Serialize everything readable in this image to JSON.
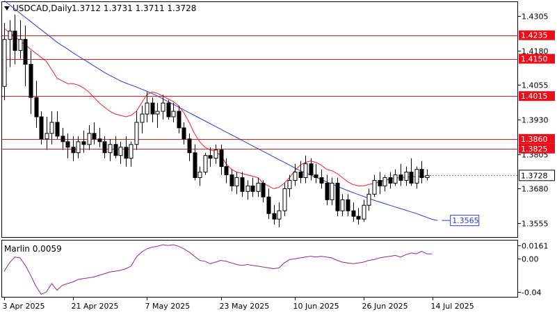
{
  "header": {
    "symbol": "USDCAD,Daily",
    "ohlc": "1.3712 1.3731 1.3711 1.3728"
  },
  "colors": {
    "candle": "#000000",
    "fast_ma": "#e8202a",
    "slow_ma": "#2a3bd9",
    "levels": "#d81c1c",
    "marlin": "#8f2a94",
    "grid_text": "#000000",
    "label_box_red": "#e8101a",
    "label_box_dark": "#000000"
  },
  "chart_data": [
    {
      "type": "candlestick",
      "name": "USDCAD,Daily",
      "ylim": [
        1.3505,
        1.4355
      ],
      "y_ticks": [
        "1.4305",
        "1.4180",
        "1.4055",
        "1.3930",
        "1.3805",
        "1.3680",
        "1.3555"
      ],
      "x_tick_labels": [
        "3 Apr 2025",
        "21 Apr 2025",
        "7 May 2025",
        "23 May 2025",
        "10 Jun 2025",
        "26 Jun 2025",
        "14 Jul 2025"
      ],
      "x_tick_index": [
        0,
        13,
        27,
        41,
        55,
        68,
        81
      ],
      "horizontal_levels": [
        {
          "value": 1.4235,
          "label": "1.4235"
        },
        {
          "value": 1.415,
          "label": "1.4150"
        },
        {
          "value": 1.4015,
          "label": "1.4015"
        },
        {
          "value": 1.386,
          "label": "1.3860"
        },
        {
          "value": 1.3825,
          "label": "1.3825"
        }
      ],
      "current_price": {
        "value": 1.3728,
        "label": "1.3728"
      },
      "slow_ma_label": {
        "value": 1.3565,
        "label": "1.3565"
      },
      "candles": [
        [
          1.405,
          1.428,
          1.4,
          1.422
        ],
        [
          1.422,
          1.429,
          1.412,
          1.425
        ],
        [
          1.425,
          1.431,
          1.413,
          1.418
        ],
        [
          1.418,
          1.429,
          1.415,
          1.422
        ],
        [
          1.422,
          1.427,
          1.405,
          1.413
        ],
        [
          1.413,
          1.418,
          1.395,
          1.401
        ],
        [
          1.401,
          1.407,
          1.39,
          1.394
        ],
        [
          1.394,
          1.396,
          1.384,
          1.386
        ],
        [
          1.386,
          1.394,
          1.382,
          1.388
        ],
        [
          1.388,
          1.396,
          1.384,
          1.392
        ],
        [
          1.392,
          1.396,
          1.386,
          1.387
        ],
        [
          1.387,
          1.39,
          1.382,
          1.385
        ],
        [
          1.385,
          1.388,
          1.379,
          1.383
        ],
        [
          1.383,
          1.387,
          1.378,
          1.381
        ],
        [
          1.381,
          1.387,
          1.379,
          1.385
        ],
        [
          1.385,
          1.389,
          1.381,
          1.384
        ],
        [
          1.384,
          1.391,
          1.382,
          1.388
        ],
        [
          1.388,
          1.392,
          1.384,
          1.386
        ],
        [
          1.386,
          1.39,
          1.383,
          1.385
        ],
        [
          1.385,
          1.387,
          1.379,
          1.381
        ],
        [
          1.381,
          1.386,
          1.378,
          1.384
        ],
        [
          1.384,
          1.387,
          1.379,
          1.38
        ],
        [
          1.38,
          1.385,
          1.377,
          1.383
        ],
        [
          1.383,
          1.387,
          1.376,
          1.379
        ],
        [
          1.379,
          1.385,
          1.376,
          1.384
        ],
        [
          1.384,
          1.396,
          1.382,
          1.392
        ],
        [
          1.392,
          1.398,
          1.388,
          1.395
        ],
        [
          1.395,
          1.403,
          1.392,
          1.399
        ],
        [
          1.399,
          1.401,
          1.392,
          1.395
        ],
        [
          1.395,
          1.399,
          1.39,
          1.396
        ],
        [
          1.396,
          1.402,
          1.393,
          1.399
        ],
        [
          1.399,
          1.4,
          1.393,
          1.394
        ],
        [
          1.394,
          1.399,
          1.392,
          1.396
        ],
        [
          1.396,
          1.398,
          1.388,
          1.39
        ],
        [
          1.39,
          1.392,
          1.384,
          1.386
        ],
        [
          1.386,
          1.388,
          1.378,
          1.381
        ],
        [
          1.381,
          1.384,
          1.371,
          1.372
        ],
        [
          1.372,
          1.376,
          1.369,
          1.374
        ],
        [
          1.374,
          1.381,
          1.373,
          1.38
        ],
        [
          1.38,
          1.383,
          1.376,
          1.379
        ],
        [
          1.379,
          1.384,
          1.377,
          1.382
        ],
        [
          1.382,
          1.384,
          1.373,
          1.376
        ],
        [
          1.376,
          1.379,
          1.37,
          1.373
        ],
        [
          1.373,
          1.375,
          1.367,
          1.369
        ],
        [
          1.369,
          1.374,
          1.366,
          1.372
        ],
        [
          1.372,
          1.374,
          1.365,
          1.367
        ],
        [
          1.367,
          1.371,
          1.364,
          1.369
        ],
        [
          1.369,
          1.372,
          1.365,
          1.367
        ],
        [
          1.367,
          1.372,
          1.365,
          1.37
        ],
        [
          1.37,
          1.371,
          1.363,
          1.365
        ],
        [
          1.365,
          1.368,
          1.357,
          1.359
        ],
        [
          1.359,
          1.362,
          1.355,
          1.357
        ],
        [
          1.357,
          1.363,
          1.354,
          1.36
        ],
        [
          1.36,
          1.37,
          1.358,
          1.368
        ],
        [
          1.368,
          1.373,
          1.365,
          1.371
        ],
        [
          1.371,
          1.377,
          1.369,
          1.374
        ],
        [
          1.374,
          1.378,
          1.37,
          1.372
        ],
        [
          1.372,
          1.38,
          1.37,
          1.377
        ],
        [
          1.377,
          1.379,
          1.371,
          1.373
        ],
        [
          1.373,
          1.377,
          1.37,
          1.372
        ],
        [
          1.372,
          1.375,
          1.368,
          1.37
        ],
        [
          1.37,
          1.373,
          1.362,
          1.364
        ],
        [
          1.364,
          1.372,
          1.362,
          1.37
        ],
        [
          1.37,
          1.372,
          1.358,
          1.36
        ],
        [
          1.36,
          1.366,
          1.358,
          1.364
        ],
        [
          1.364,
          1.366,
          1.358,
          1.36
        ],
        [
          1.36,
          1.363,
          1.356,
          1.358
        ],
        [
          1.358,
          1.361,
          1.355,
          1.357
        ],
        [
          1.357,
          1.364,
          1.356,
          1.362
        ],
        [
          1.362,
          1.368,
          1.36,
          1.366
        ],
        [
          1.366,
          1.373,
          1.365,
          1.371
        ],
        [
          1.371,
          1.374,
          1.366,
          1.369
        ],
        [
          1.369,
          1.373,
          1.367,
          1.372
        ],
        [
          1.372,
          1.374,
          1.368,
          1.37
        ],
        [
          1.37,
          1.375,
          1.369,
          1.373
        ],
        [
          1.373,
          1.377,
          1.369,
          1.371
        ],
        [
          1.371,
          1.376,
          1.369,
          1.374
        ],
        [
          1.374,
          1.379,
          1.369,
          1.37
        ],
        [
          1.37,
          1.376,
          1.368,
          1.375
        ],
        [
          1.375,
          1.378,
          1.37,
          1.372
        ],
        [
          1.372,
          1.375,
          1.371,
          1.3728
        ]
      ],
      "fast_ma": [
        1.426,
        1.4245,
        1.423,
        1.4215,
        1.42,
        1.4185,
        1.417,
        1.4155,
        1.414,
        1.411,
        1.408,
        1.407,
        1.406,
        1.406,
        1.4055,
        1.4045,
        1.403,
        1.401,
        1.399,
        1.3975,
        1.396,
        1.395,
        1.3945,
        1.394,
        1.3945,
        1.396,
        1.399,
        1.402,
        1.403,
        1.4025,
        1.4015,
        1.4005,
        1.3995,
        1.398,
        1.3955,
        1.392,
        1.388,
        1.385,
        1.383,
        1.382,
        1.3815,
        1.38,
        1.377,
        1.375,
        1.374,
        1.3735,
        1.373,
        1.3725,
        1.372,
        1.37,
        1.369,
        1.368,
        1.3685,
        1.37,
        1.372,
        1.3745,
        1.3765,
        1.3775,
        1.378,
        1.3775,
        1.3765,
        1.375,
        1.3745,
        1.3735,
        1.372,
        1.3705,
        1.3695,
        1.369,
        1.369,
        1.3695,
        1.37,
        1.3705,
        1.371,
        1.3715,
        1.3718,
        1.372,
        1.3722,
        1.3723,
        1.3724,
        1.3724,
        1.3725
      ],
      "slow_ma": [
        1.436,
        1.4345,
        1.433,
        1.4315,
        1.43,
        1.4285,
        1.427,
        1.4255,
        1.424,
        1.4225,
        1.421,
        1.4197,
        1.4185,
        1.4172,
        1.416,
        1.4148,
        1.4136,
        1.4124,
        1.4112,
        1.41,
        1.409,
        1.408,
        1.407,
        1.4062,
        1.4055,
        1.4048,
        1.404,
        1.4032,
        1.4024,
        1.4015,
        1.4005,
        1.3995,
        1.3985,
        1.3975,
        1.3965,
        1.3955,
        1.3945,
        1.3935,
        1.3925,
        1.3915,
        1.3905,
        1.3895,
        1.3885,
        1.3875,
        1.3865,
        1.3855,
        1.3845,
        1.3835,
        1.3825,
        1.3815,
        1.3805,
        1.3795,
        1.3785,
        1.3775,
        1.3765,
        1.3755,
        1.3745,
        1.3737,
        1.3729,
        1.3721,
        1.3713,
        1.3705,
        1.3697,
        1.3689,
        1.3681,
        1.3673,
        1.3666,
        1.3659,
        1.3652,
        1.3645,
        1.3638,
        1.3632,
        1.3626,
        1.362,
        1.3614,
        1.3608,
        1.3602,
        1.3596,
        1.359,
        1.3583,
        1.3576,
        1.3569,
        1.3565
      ]
    },
    {
      "type": "line",
      "name": "Marlin",
      "title": "Marlin 0.0059",
      "ylim": [
        -0.046,
        0.022
      ],
      "y_ticks": [
        "0.0161",
        "0.00",
        "-0.04"
      ],
      "values": [
        -0.015,
        -0.005,
        0.002,
        0.001,
        -0.008,
        -0.02,
        -0.033,
        -0.043,
        -0.04,
        -0.03,
        -0.038,
        -0.032,
        -0.03,
        -0.028,
        -0.025,
        -0.024,
        -0.023,
        -0.022,
        -0.02,
        -0.018,
        -0.016,
        -0.015,
        -0.014,
        -0.012,
        -0.009,
        0.002,
        0.008,
        0.012,
        0.014,
        0.015,
        0.017,
        0.016,
        0.017,
        0.015,
        0.012,
        0.008,
        0.003,
        -0.002,
        -0.003,
        -0.006,
        -0.004,
        -0.002,
        -0.003,
        -0.005,
        -0.007,
        -0.008,
        -0.007,
        -0.008,
        -0.009,
        -0.01,
        -0.011,
        -0.012,
        -0.011,
        -0.005,
        -0.001,
        0.0,
        0.001,
        0.002,
        0.003,
        0.002,
        0.003,
        0.002,
        0.001,
        -0.002,
        -0.004,
        -0.005,
        -0.006,
        -0.005,
        -0.004,
        -0.002,
        -0.001,
        0.001,
        0.002,
        0.003,
        0.004,
        0.002,
        0.005,
        0.007,
        0.006,
        0.009,
        0.006,
        0.0059
      ],
      "x_tick_labels": [
        "3 Apr 2025",
        "21 Apr 2025",
        "7 May 2025",
        "23 May 2025",
        "10 Jun 2025",
        "26 Jun 2025",
        "14 Jul 2025"
      ]
    }
  ]
}
